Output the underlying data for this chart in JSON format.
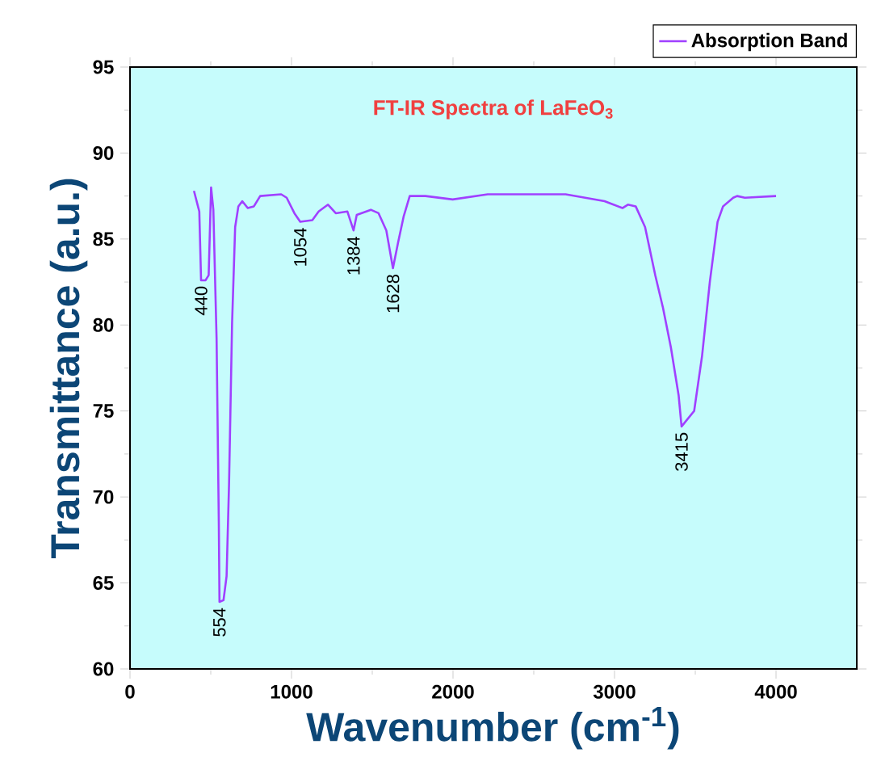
{
  "chart_data": {
    "type": "line",
    "title": "FT-IR Spectra of LaFeO$_{3}$",
    "xlabel": "Wavenumber (cm$^{-1}$)",
    "ylabel": "Transmittance (a.u.)",
    "series": [
      {
        "name": "Absorption Band",
        "color": "#a040ff",
        "x": [
          396,
          429,
          440,
          468,
          487,
          502,
          516,
          536,
          550,
          554,
          579,
          598,
          613,
          632,
          651,
          671,
          695,
          729,
          767,
          806,
          936,
          970,
          1018,
          1054,
          1129,
          1168,
          1226,
          1274,
          1346,
          1384,
          1404,
          1491,
          1539,
          1587,
          1628,
          1660,
          1694,
          1732,
          1829,
          1998,
          2215,
          2697,
          2818,
          2938,
          3049,
          3083,
          3131,
          3189,
          3252,
          3300,
          3349,
          3397,
          3415,
          3493,
          3542,
          3590,
          3638,
          3672,
          3735,
          3759,
          3807,
          4000
        ],
        "values": [
          87.8,
          86.6,
          82.6,
          82.6,
          82.9,
          88.0,
          86.7,
          79.2,
          68.4,
          63.9,
          64.0,
          65.4,
          70.7,
          80.1,
          85.7,
          86.9,
          87.2,
          86.8,
          86.9,
          87.5,
          87.6,
          87.4,
          86.5,
          86.0,
          86.1,
          86.6,
          87.0,
          86.5,
          86.6,
          85.5,
          86.4,
          86.7,
          86.5,
          85.5,
          83.3,
          84.8,
          86.3,
          87.5,
          87.5,
          87.3,
          87.6,
          87.6,
          87.4,
          87.2,
          86.8,
          87.0,
          86.9,
          85.7,
          82.9,
          81.0,
          78.7,
          75.9,
          74.1,
          75.0,
          78.2,
          82.5,
          86.0,
          86.9,
          87.4,
          87.5,
          87.4,
          87.5
        ]
      }
    ],
    "xlim": [
      0,
      4500
    ],
    "ylim": [
      60,
      95
    ],
    "xticks": [
      0,
      1000,
      2000,
      3000,
      4000
    ],
    "yticks": [
      60,
      65,
      70,
      75,
      80,
      85,
      90,
      95
    ],
    "annotations": [
      {
        "text": "440",
        "x": 440,
        "y": 82.6
      },
      {
        "text": "554",
        "x": 554,
        "y": 63.9
      },
      {
        "text": "1054",
        "x": 1054,
        "y": 86.0
      },
      {
        "text": "1384",
        "x": 1384,
        "y": 85.5
      },
      {
        "text": "1628",
        "x": 1628,
        "y": 83.3
      },
      {
        "text": "3415",
        "x": 3415,
        "y": 74.1
      }
    ],
    "legend": "top right",
    "marker": "none",
    "line_style": "solid",
    "grid": false
  }
}
